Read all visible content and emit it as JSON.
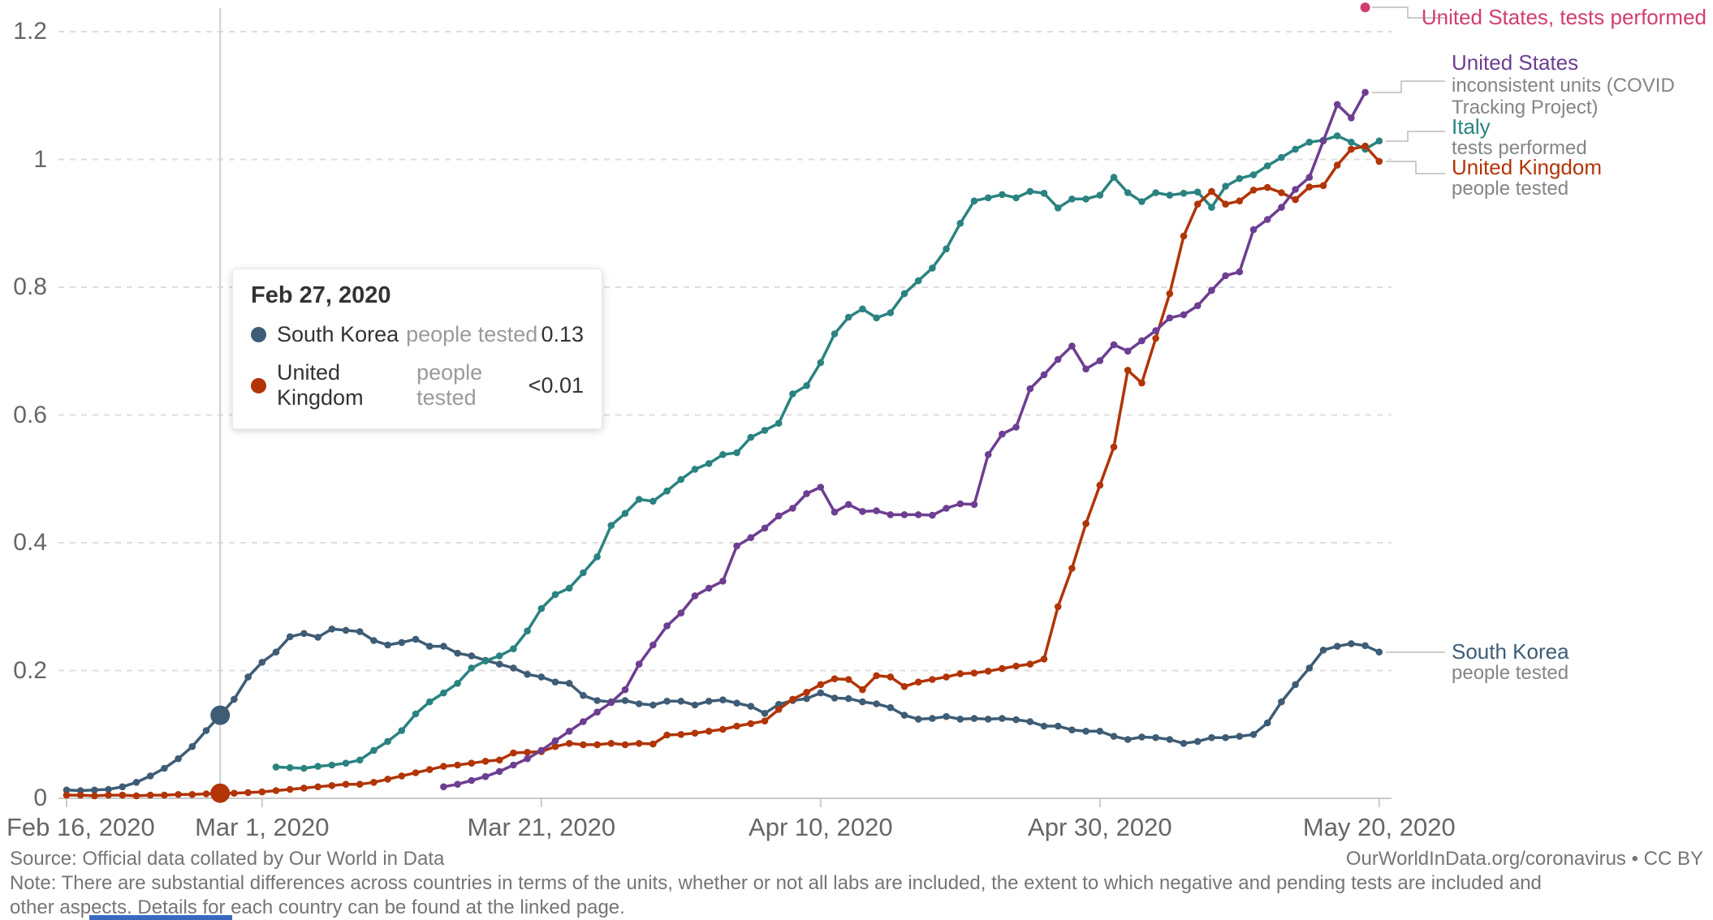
{
  "colors": {
    "background": "#ffffff",
    "grid": "#dedede",
    "axis": "#c9c9c9",
    "axis_text": "#666666",
    "legend_sub_text": "#858585",
    "footer_text": "#757575",
    "bottom_bar": "#3968c0"
  },
  "tooltip": {
    "title": "Feb 27, 2020",
    "rows": [
      {
        "country": "South Korea",
        "unit": "people tested",
        "value": "0.13"
      },
      {
        "country": "United Kingdom",
        "unit": "people tested",
        "value": "<0.01"
      }
    ]
  },
  "legend": {
    "entries": [
      {
        "id": "united_states_tests",
        "label": "United States, tests performed",
        "sub": "",
        "color": "#d23d6e"
      },
      {
        "id": "united_states_ctp",
        "label": "United States",
        "sub": "inconsistent units (COVID Tracking Project)",
        "color": "#6d3e91"
      },
      {
        "id": "italy",
        "label": "Italy",
        "sub": "tests performed",
        "color": "#2a8380"
      },
      {
        "id": "united_kingdom",
        "label": "United Kingdom",
        "sub": "people tested",
        "color": "#b13507"
      },
      {
        "id": "south_korea",
        "label": "South Korea",
        "sub": "people tested",
        "color": "#3e5c75"
      }
    ]
  },
  "footer": {
    "source": "Source: Official data collated by Our World in Data",
    "note": "Note: There are substantial differences across countries in terms of the units, whether or not all labs are included, the extent to which negative and pending tests are included and other aspects. Details for each country can be found at the linked page.",
    "link": "OurWorldInData.org/coronavirus • CC BY"
  },
  "chart_data": {
    "type": "line",
    "title": "",
    "xlabel": "",
    "ylabel": "",
    "grid": true,
    "legend_position": "right",
    "ylim": [
      0,
      1.25
    ],
    "x_axis": {
      "start_date": "2020-02-16",
      "tick_labels": [
        {
          "day": 0,
          "label": "Feb 16, 2020"
        },
        {
          "day": 14,
          "label": "Mar 1, 2020"
        },
        {
          "day": 34,
          "label": "Mar 21, 2020"
        },
        {
          "day": 54,
          "label": "Apr 10, 2020"
        },
        {
          "day": 74,
          "label": "Apr 30, 2020"
        },
        {
          "day": 94,
          "label": "May 20, 2020"
        }
      ]
    },
    "y_axis": {
      "ticks": [
        0,
        0.2,
        0.4,
        0.6,
        0.8,
        1,
        1.2
      ],
      "labels": [
        "0",
        "0.2",
        "0.4",
        "0.6",
        "0.8",
        "1",
        "1.2"
      ]
    },
    "highlight": {
      "day": 11,
      "date_label": "Feb 27, 2020",
      "series": [
        "south_korea",
        "united_kingdom"
      ]
    },
    "series": [
      {
        "id": "south_korea",
        "name": "South Korea",
        "unit": "people tested",
        "color": "#3e5c75",
        "start_day": 0,
        "values": [
          0.013,
          0.012,
          0.013,
          0.014,
          0.018,
          0.025,
          0.035,
          0.047,
          0.062,
          0.081,
          0.106,
          0.13,
          0.155,
          0.19,
          0.213,
          0.229,
          0.253,
          0.258,
          0.252,
          0.265,
          0.263,
          0.261,
          0.247,
          0.24,
          0.244,
          0.249,
          0.238,
          0.238,
          0.227,
          0.223,
          0.216,
          0.21,
          0.204,
          0.194,
          0.19,
          0.182,
          0.18,
          0.161,
          0.153,
          0.151,
          0.153,
          0.148,
          0.146,
          0.152,
          0.152,
          0.146,
          0.152,
          0.154,
          0.149,
          0.144,
          0.133,
          0.147,
          0.153,
          0.156,
          0.165,
          0.157,
          0.156,
          0.151,
          0.148,
          0.142,
          0.13,
          0.124,
          0.125,
          0.128,
          0.124,
          0.125,
          0.124,
          0.125,
          0.123,
          0.12,
          0.113,
          0.113,
          0.107,
          0.105,
          0.105,
          0.097,
          0.092,
          0.096,
          0.095,
          0.092,
          0.086,
          0.089,
          0.095,
          0.095,
          0.097,
          0.1,
          0.118,
          0.151,
          0.178,
          0.204,
          0.232,
          0.238,
          0.242,
          0.239,
          0.229
        ]
      },
      {
        "id": "united_kingdom",
        "name": "United Kingdom",
        "unit": "people tested",
        "color": "#b13507",
        "start_day": 0,
        "values": [
          0.005,
          0.005,
          0.004,
          0.005,
          0.005,
          0.004,
          0.005,
          0.005,
          0.006,
          0.006,
          0.007,
          0.008,
          0.008,
          0.009,
          0.01,
          0.012,
          0.014,
          0.016,
          0.018,
          0.02,
          0.022,
          0.022,
          0.025,
          0.03,
          0.035,
          0.04,
          0.045,
          0.05,
          0.052,
          0.055,
          0.058,
          0.06,
          0.071,
          0.072,
          0.073,
          0.081,
          0.086,
          0.084,
          0.084,
          0.086,
          0.084,
          0.086,
          0.085,
          0.099,
          0.1,
          0.102,
          0.105,
          0.108,
          0.113,
          0.117,
          0.121,
          0.139,
          0.155,
          0.166,
          0.178,
          0.187,
          0.186,
          0.17,
          0.192,
          0.19,
          0.175,
          0.182,
          0.186,
          0.19,
          0.195,
          0.196,
          0.199,
          0.203,
          0.207,
          0.21,
          0.218,
          0.3,
          0.36,
          0.43,
          0.49,
          0.55,
          0.67,
          0.65,
          0.72,
          0.79,
          0.88,
          0.93,
          0.95,
          0.93,
          0.935,
          0.952,
          0.956,
          0.948,
          0.937,
          0.957,
          0.959,
          0.991,
          1.016,
          1.021,
          0.997
        ]
      },
      {
        "id": "italy",
        "name": "Italy",
        "unit": "tests performed",
        "color": "#2a8380",
        "start_day": 15,
        "values": [
          0.049,
          0.048,
          0.047,
          0.05,
          0.052,
          0.055,
          0.06,
          0.075,
          0.089,
          0.106,
          0.132,
          0.151,
          0.165,
          0.18,
          0.204,
          0.215,
          0.223,
          0.234,
          0.262,
          0.297,
          0.319,
          0.329,
          0.353,
          0.378,
          0.427,
          0.446,
          0.468,
          0.465,
          0.481,
          0.499,
          0.515,
          0.524,
          0.538,
          0.541,
          0.565,
          0.576,
          0.587,
          0.633,
          0.646,
          0.682,
          0.727,
          0.753,
          0.766,
          0.752,
          0.76,
          0.79,
          0.81,
          0.83,
          0.86,
          0.9,
          0.935,
          0.94,
          0.945,
          0.94,
          0.95,
          0.947,
          0.924,
          0.938,
          0.938,
          0.944,
          0.972,
          0.948,
          0.934,
          0.948,
          0.944,
          0.947,
          0.949,
          0.925,
          0.958,
          0.97,
          0.976,
          0.99,
          1.003,
          1.016,
          1.027,
          1.03,
          1.037,
          1.027,
          1.016,
          1.029
        ]
      },
      {
        "id": "united_states_ctp",
        "name": "United States",
        "unit": "inconsistent units (COVID Tracking Project)",
        "color": "#6d3e91",
        "start_day": 27,
        "values": [
          0.018,
          0.022,
          0.028,
          0.034,
          0.042,
          0.052,
          0.062,
          0.075,
          0.09,
          0.105,
          0.12,
          0.135,
          0.15,
          0.17,
          0.21,
          0.24,
          0.27,
          0.29,
          0.317,
          0.329,
          0.34,
          0.395,
          0.408,
          0.423,
          0.442,
          0.454,
          0.477,
          0.487,
          0.448,
          0.46,
          0.449,
          0.45,
          0.444,
          0.444,
          0.444,
          0.443,
          0.454,
          0.461,
          0.46,
          0.538,
          0.57,
          0.581,
          0.641,
          0.663,
          0.687,
          0.708,
          0.672,
          0.685,
          0.71,
          0.7,
          0.716,
          0.732,
          0.752,
          0.757,
          0.771,
          0.795,
          0.818,
          0.824,
          0.89,
          0.906,
          0.925,
          0.953,
          0.972,
          1.029,
          1.086,
          1.065,
          1.105
        ]
      },
      {
        "id": "united_states_tests",
        "name": "United States, tests performed",
        "unit": "tests performed",
        "color": "#d23d6e",
        "start_day": 93,
        "values": [
          1.238
        ]
      }
    ]
  }
}
